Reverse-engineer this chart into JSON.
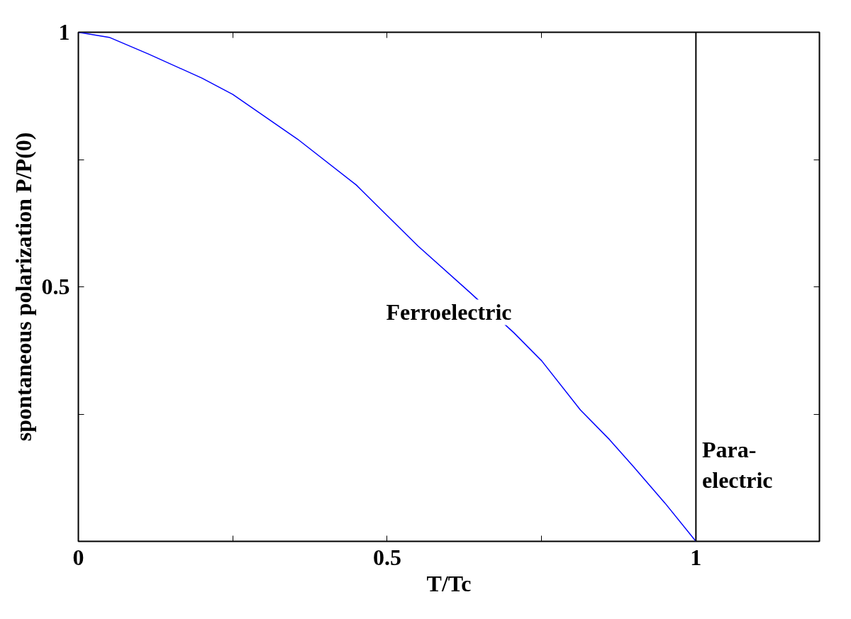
{
  "chart_data": {
    "type": "line",
    "xlabel": "T/Tc",
    "ylabel": "spontaneous polarization P/P(0)",
    "x": [
      0,
      0.05,
      0.114,
      0.2,
      0.25,
      0.355,
      0.45,
      0.5,
      0.55,
      0.633,
      0.705,
      0.75,
      0.813,
      0.86,
      0.898,
      0.95,
      1
    ],
    "series": [
      {
        "color": "#0000ff",
        "values": [
          1,
          0.99,
          0.957,
          0.91,
          0.878,
          0.79,
          0.7,
          0.64,
          0.58,
          0.49,
          0.41,
          0.355,
          0.258,
          0.2,
          0.148,
          0.075,
          0
        ]
      }
    ],
    "xlim": [
      0,
      1.2
    ],
    "ylim": [
      0,
      1
    ],
    "xticks": [
      0,
      {
        "value": 0.25,
        "label": null
      },
      0.5,
      {
        "value": 0.75,
        "label": null
      },
      1
    ],
    "yticks": [
      {
        "value": 0,
        "label": null
      },
      {
        "value": 0.25,
        "label": null
      },
      0.5,
      {
        "value": 0.75,
        "label": null
      },
      1
    ],
    "ref_lines": [
      {
        "axis": "x",
        "value": 1,
        "color": "#000000"
      }
    ],
    "annotations": [
      "Ferroelectric",
      "Para-\nelectric"
    ],
    "grid": false
  }
}
